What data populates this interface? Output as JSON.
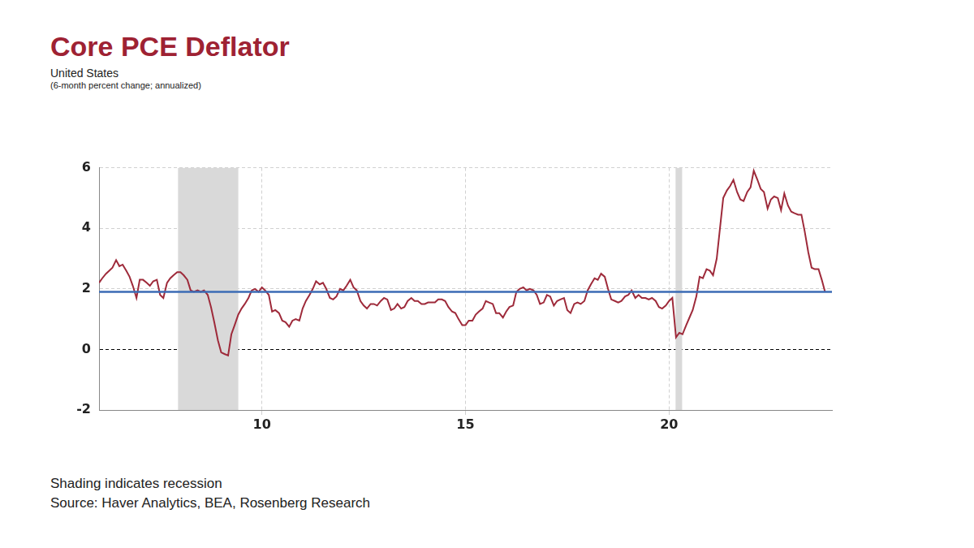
{
  "chart_data": {
    "type": "line",
    "title": "Core PCE Deflator",
    "subtitle": "United States",
    "units_note": "(6-month percent change; annualized)",
    "annotation": "Shading indicates recession",
    "source": "Source: Haver Analytics, BEA, Rosenberg Research",
    "color": "#9e2a3a",
    "x": [
      2006.0,
      2006.08,
      2006.17,
      2006.25,
      2006.33,
      2006.42,
      2006.5,
      2006.58,
      2006.67,
      2006.75,
      2006.83,
      2006.92,
      2007.0,
      2007.08,
      2007.17,
      2007.25,
      2007.33,
      2007.42,
      2007.5,
      2007.58,
      2007.67,
      2007.75,
      2007.83,
      2007.92,
      2008.0,
      2008.08,
      2008.17,
      2008.25,
      2008.33,
      2008.42,
      2008.5,
      2008.58,
      2008.67,
      2008.75,
      2008.83,
      2008.92,
      2009.0,
      2009.08,
      2009.17,
      2009.25,
      2009.33,
      2009.42,
      2009.5,
      2009.58,
      2009.67,
      2009.75,
      2009.83,
      2009.92,
      2010.0,
      2010.08,
      2010.17,
      2010.25,
      2010.33,
      2010.42,
      2010.5,
      2010.58,
      2010.67,
      2010.75,
      2010.83,
      2010.92,
      2011.0,
      2011.08,
      2011.17,
      2011.25,
      2011.33,
      2011.42,
      2011.5,
      2011.58,
      2011.67,
      2011.75,
      2011.83,
      2011.92,
      2012.0,
      2012.08,
      2012.17,
      2012.25,
      2012.33,
      2012.42,
      2012.5,
      2012.58,
      2012.67,
      2012.75,
      2012.83,
      2012.92,
      2013.0,
      2013.08,
      2013.17,
      2013.25,
      2013.33,
      2013.42,
      2013.5,
      2013.58,
      2013.67,
      2013.75,
      2013.83,
      2013.92,
      2014.0,
      2014.08,
      2014.17,
      2014.25,
      2014.33,
      2014.42,
      2014.5,
      2014.58,
      2014.67,
      2014.75,
      2014.83,
      2014.92,
      2015.0,
      2015.08,
      2015.17,
      2015.25,
      2015.33,
      2015.42,
      2015.5,
      2015.58,
      2015.67,
      2015.75,
      2015.83,
      2015.92,
      2016.0,
      2016.08,
      2016.17,
      2016.25,
      2016.33,
      2016.42,
      2016.5,
      2016.58,
      2016.67,
      2016.75,
      2016.83,
      2016.92,
      2017.0,
      2017.08,
      2017.17,
      2017.25,
      2017.33,
      2017.42,
      2017.5,
      2017.58,
      2017.67,
      2017.75,
      2017.83,
      2017.92,
      2018.0,
      2018.08,
      2018.17,
      2018.25,
      2018.33,
      2018.42,
      2018.5,
      2018.58,
      2018.67,
      2018.75,
      2018.83,
      2018.92,
      2019.0,
      2019.08,
      2019.17,
      2019.25,
      2019.33,
      2019.42,
      2019.5,
      2019.58,
      2019.67,
      2019.75,
      2019.83,
      2019.92,
      2020.0,
      2020.08,
      2020.17,
      2020.25,
      2020.33,
      2020.42,
      2020.5,
      2020.58,
      2020.67,
      2020.75,
      2020.83,
      2020.92,
      2021.0,
      2021.08,
      2021.17,
      2021.25,
      2021.33,
      2021.42,
      2021.5,
      2021.58,
      2021.67,
      2021.75,
      2021.83,
      2021.92,
      2022.0,
      2022.08,
      2022.17,
      2022.25,
      2022.33,
      2022.42,
      2022.5,
      2022.58,
      2022.67,
      2022.75,
      2022.83,
      2022.92,
      2023.0,
      2023.08,
      2023.17,
      2023.25,
      2023.33,
      2023.42,
      2023.5,
      2023.58,
      2023.67,
      2023.75,
      2023.83
    ],
    "values": [
      2.2,
      2.35,
      2.5,
      2.6,
      2.7,
      2.95,
      2.75,
      2.8,
      2.6,
      2.4,
      2.1,
      1.7,
      2.3,
      2.3,
      2.2,
      2.1,
      2.25,
      2.3,
      1.8,
      1.7,
      2.2,
      2.35,
      2.45,
      2.55,
      2.55,
      2.45,
      2.3,
      1.95,
      1.9,
      1.95,
      1.9,
      1.95,
      1.8,
      1.4,
      0.9,
      0.3,
      -0.1,
      -0.15,
      -0.2,
      0.5,
      0.8,
      1.15,
      1.35,
      1.5,
      1.7,
      1.95,
      2.0,
      1.9,
      2.05,
      1.95,
      1.8,
      1.25,
      1.3,
      1.2,
      0.95,
      0.9,
      0.75,
      0.95,
      1.0,
      0.95,
      1.35,
      1.6,
      1.8,
      2.0,
      2.25,
      2.15,
      2.2,
      2.0,
      1.7,
      1.65,
      1.75,
      2.0,
      1.95,
      2.1,
      2.3,
      2.05,
      1.95,
      1.6,
      1.45,
      1.35,
      1.5,
      1.5,
      1.45,
      1.6,
      1.7,
      1.65,
      1.3,
      1.35,
      1.5,
      1.35,
      1.4,
      1.6,
      1.7,
      1.6,
      1.6,
      1.5,
      1.5,
      1.55,
      1.55,
      1.55,
      1.65,
      1.65,
      1.6,
      1.4,
      1.25,
      1.2,
      1.0,
      0.8,
      0.8,
      0.95,
      0.95,
      1.15,
      1.25,
      1.35,
      1.6,
      1.55,
      1.5,
      1.2,
      1.2,
      1.05,
      1.25,
      1.4,
      1.45,
      1.9,
      2.0,
      2.05,
      1.95,
      2.0,
      1.95,
      1.8,
      1.5,
      1.55,
      1.8,
      1.75,
      1.45,
      1.6,
      1.65,
      1.7,
      1.3,
      1.2,
      1.5,
      1.55,
      1.5,
      1.6,
      1.95,
      2.15,
      2.35,
      2.3,
      2.5,
      2.4,
      2.0,
      1.65,
      1.6,
      1.55,
      1.6,
      1.75,
      1.8,
      1.95,
      1.7,
      1.8,
      1.7,
      1.7,
      1.65,
      1.7,
      1.6,
      1.4,
      1.35,
      1.45,
      1.6,
      1.7,
      0.4,
      0.55,
      0.5,
      0.8,
      1.05,
      1.3,
      1.75,
      2.4,
      2.35,
      2.65,
      2.6,
      2.45,
      3.0,
      4.0,
      5.0,
      5.25,
      5.4,
      5.6,
      5.2,
      4.95,
      4.9,
      5.2,
      5.35,
      5.9,
      5.6,
      5.3,
      5.2,
      4.65,
      4.95,
      5.05,
      5.0,
      4.6,
      5.15,
      4.75,
      4.55,
      4.5,
      4.45,
      4.45,
      3.9,
      3.2,
      2.7,
      2.65,
      2.65,
      2.3,
      1.9
    ],
    "reference_line": {
      "value": 1.9,
      "color": "#3b6bb5"
    },
    "recessions": [
      {
        "start": 2007.94,
        "end": 2009.42
      },
      {
        "start": 2020.16,
        "end": 2020.32
      }
    ],
    "xlim": [
      2006,
      2024
    ],
    "xticks": [
      {
        "value": 2010,
        "label": "10"
      },
      {
        "value": 2015,
        "label": "15"
      },
      {
        "value": 2020,
        "label": "20"
      }
    ],
    "ylim": [
      -2,
      6
    ],
    "yticks": [
      -2,
      0,
      2,
      4,
      6
    ],
    "grid": true
  }
}
